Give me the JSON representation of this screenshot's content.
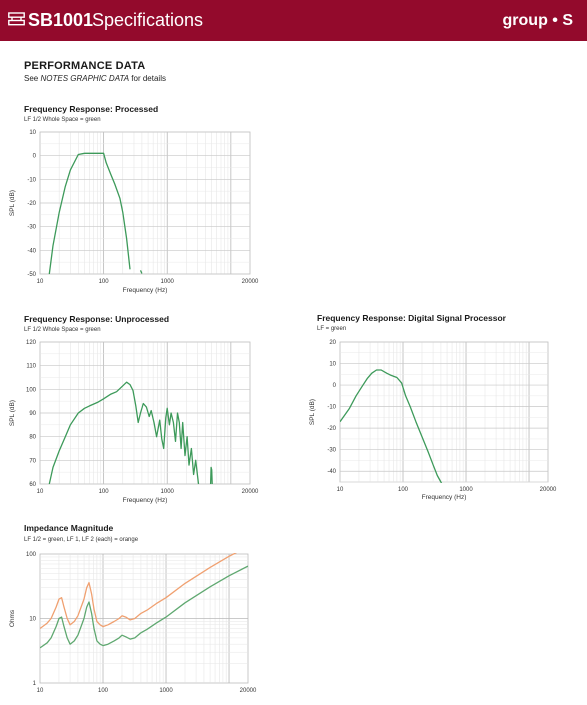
{
  "header": {
    "model": "SB1001",
    "title": "Specifications",
    "brand": "group • S",
    "bg_color": "#930a2c"
  },
  "section": {
    "title": "PERFORMANCE DATA",
    "note_prefix": "See ",
    "note_italic": "NOTES GRAPHIC DATA",
    "note_suffix": " for details"
  },
  "chart_data": [
    {
      "id": "processed",
      "type": "line",
      "title": "Frequency Response: Processed",
      "legend": "LF 1/2 Whole Space = green",
      "xlabel": "Frequency (Hz)",
      "ylabel": "SPL (dB)",
      "xscale": "log",
      "xlim": [
        10,
        20000
      ],
      "ylim": [
        -50,
        10
      ],
      "xticks": [
        10,
        100,
        1000,
        20000
      ],
      "xtick_labels": [
        "10",
        "100",
        "1000",
        "20000"
      ],
      "yticks": [
        10,
        0,
        -10,
        -20,
        -30,
        -40,
        -50
      ],
      "ytick_labels": [
        "10",
        "0",
        "-10",
        "-20",
        "-30",
        "-40",
        "-50"
      ],
      "grid": true,
      "series": [
        {
          "color": "#3d9a5a",
          "x": [
            14,
            16,
            20,
            25,
            30,
            40,
            50,
            60,
            80,
            100,
            110,
            130,
            150,
            180,
            200,
            230,
            260
          ],
          "y": [
            -50,
            -38,
            -24,
            -13,
            -6,
            0.5,
            1,
            1,
            1,
            1,
            -3,
            -8,
            -12,
            -18,
            -24,
            -35,
            -48
          ]
        },
        {
          "color": "#3d9a5a",
          "x": [
            380,
            400
          ],
          "y": [
            -48.5,
            -49.8
          ]
        }
      ]
    },
    {
      "id": "unprocessed",
      "type": "line",
      "title": "Frequency Response: Unprocessed",
      "legend": "LF 1/2 Whole Space = green",
      "xlabel": "Frequency (Hz)",
      "ylabel": "SPL (dB)",
      "xscale": "log",
      "xlim": [
        10,
        20000
      ],
      "ylim": [
        60,
        120
      ],
      "xticks": [
        10,
        100,
        1000,
        20000
      ],
      "xtick_labels": [
        "10",
        "100",
        "1000",
        "20000"
      ],
      "yticks": [
        120,
        110,
        100,
        90,
        80,
        70,
        60
      ],
      "ytick_labels": [
        "120",
        "110",
        "100",
        "90",
        "80",
        "70",
        "60"
      ],
      "grid": true,
      "series": [
        {
          "color": "#3d9a5a",
          "x": [
            14,
            16,
            20,
            25,
            30,
            40,
            50,
            60,
            80,
            100,
            130,
            160,
            200,
            230,
            260,
            290,
            320,
            350,
            380,
            420,
            470,
            520,
            560,
            620,
            680,
            760,
            820,
            880,
            950,
            1000,
            1080,
            1150,
            1250,
            1350,
            1450,
            1550,
            1650,
            1750,
            1900,
            2050,
            2200,
            2400,
            2600,
            2800,
            3100
          ],
          "y": [
            60,
            67,
            74,
            80,
            85,
            90,
            92,
            93,
            94.5,
            96,
            98,
            99,
            101.5,
            103,
            102,
            99.5,
            93,
            86,
            90,
            94,
            92.5,
            88.5,
            91,
            86,
            80,
            87,
            79,
            75,
            88,
            92,
            85,
            90,
            86,
            78,
            90,
            86,
            75,
            86,
            72,
            80,
            68,
            75,
            64,
            70,
            60
          ]
        },
        {
          "color": "#3d9a5a",
          "x": [
            4800,
            4900,
            5000,
            5100
          ],
          "y": [
            60,
            67,
            66,
            60
          ]
        }
      ]
    },
    {
      "id": "dsp",
      "type": "line",
      "title": "Frequency Response: Digital Signal Processor",
      "legend": "LF = green",
      "xlabel": "Frequency (Hz)",
      "ylabel": "SPL (dB)",
      "xscale": "log",
      "xlim": [
        10,
        20000
      ],
      "ylim": [
        -45,
        20
      ],
      "xticks": [
        10,
        100,
        1000,
        20000
      ],
      "xtick_labels": [
        "10",
        "100",
        "1000",
        "20000"
      ],
      "yticks": [
        20,
        10,
        0,
        -10,
        -20,
        -30,
        -40
      ],
      "ytick_labels": [
        "20",
        "10",
        "0",
        "-10",
        "-20",
        "-30",
        "-40"
      ],
      "grid": true,
      "series": [
        {
          "color": "#3d9a5a",
          "x": [
            10,
            14,
            18,
            22,
            27,
            32,
            38,
            45,
            55,
            65,
            80,
            95,
            110,
            130,
            160,
            200,
            250,
            300,
            350,
            400,
            430
          ],
          "y": [
            -17,
            -11,
            -5,
            -1,
            3,
            5.5,
            7,
            7,
            5.5,
            4.5,
            3.5,
            1,
            -5,
            -10,
            -17,
            -24,
            -31,
            -37,
            -42,
            -45,
            -47
          ]
        }
      ]
    },
    {
      "id": "impedance",
      "type": "line",
      "title": "Impedance Magnitude",
      "legend": "LF 1/2 = green, LF 1, LF 2 (each) = orange",
      "xlabel": "Frequency (Hz)",
      "ylabel": "Ohms",
      "xscale": "log",
      "yscale": "log",
      "xlim": [
        10,
        20000
      ],
      "ylim": [
        1,
        100
      ],
      "xticks": [
        10,
        100,
        1000,
        20000
      ],
      "xtick_labels": [
        "10",
        "100",
        "1000",
        "20000"
      ],
      "yticks": [
        100,
        10,
        1
      ],
      "ytick_labels": [
        "100",
        "10",
        "1"
      ],
      "grid": true,
      "series": [
        {
          "name": "LF 1, LF 2 (each)",
          "color": "#f0a070",
          "x": [
            10,
            13,
            15,
            18,
            20,
            22,
            24,
            27,
            30,
            35,
            40,
            50,
            55,
            60,
            66,
            72,
            80,
            90,
            100,
            120,
            150,
            180,
            200,
            230,
            270,
            320,
            400,
            500,
            700,
            1000,
            2000,
            5000,
            10000,
            20000
          ],
          "y": [
            7,
            8.5,
            10,
            15,
            20,
            21,
            15,
            10,
            8,
            9,
            11,
            20,
            30,
            36,
            24,
            14,
            9,
            8,
            7.5,
            8,
            9,
            10,
            11,
            10.5,
            9.5,
            10,
            12,
            13.5,
            17,
            21,
            35,
            62,
            92,
            130
          ]
        },
        {
          "name": "LF 1/2",
          "color": "#5fa870",
          "x": [
            10,
            13,
            15,
            18,
            20,
            22,
            24,
            27,
            30,
            35,
            40,
            50,
            55,
            60,
            66,
            72,
            80,
            90,
            100,
            120,
            150,
            180,
            200,
            230,
            270,
            320,
            400,
            500,
            700,
            1000,
            2000,
            5000,
            10000,
            20000
          ],
          "y": [
            3.5,
            4.2,
            5,
            7.5,
            10,
            10.5,
            7.5,
            5,
            4,
            4.5,
            5.5,
            10,
            15,
            18,
            12,
            7,
            4.5,
            4,
            3.8,
            4,
            4.5,
            5,
            5.5,
            5.2,
            4.8,
            5,
            6,
            6.8,
            8.5,
            10.5,
            17.5,
            31,
            46,
            65
          ]
        }
      ]
    }
  ]
}
